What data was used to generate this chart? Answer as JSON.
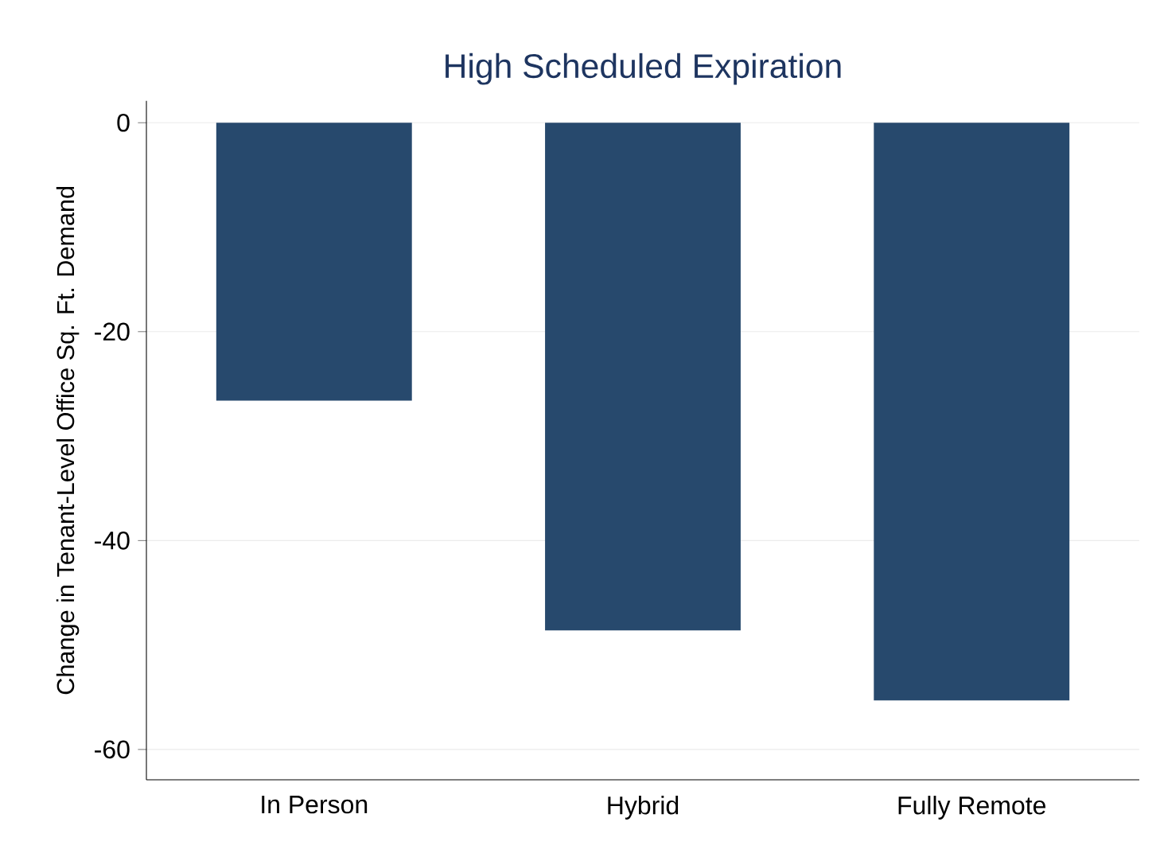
{
  "chart_data": {
    "type": "bar",
    "title": "High Scheduled Expiration",
    "ylabel": "Change in Tenant-Level Office Sq. Ft. Demand",
    "categories": [
      "In Person",
      "Hybrid",
      "Fully Remote"
    ],
    "values": [
      -26.6,
      -48.6,
      -55.3
    ],
    "color": "#27496d",
    "ylim": [
      -62.9,
      2.1
    ],
    "yticks": [
      -60,
      -40,
      -20,
      0
    ],
    "grid": "y"
  }
}
